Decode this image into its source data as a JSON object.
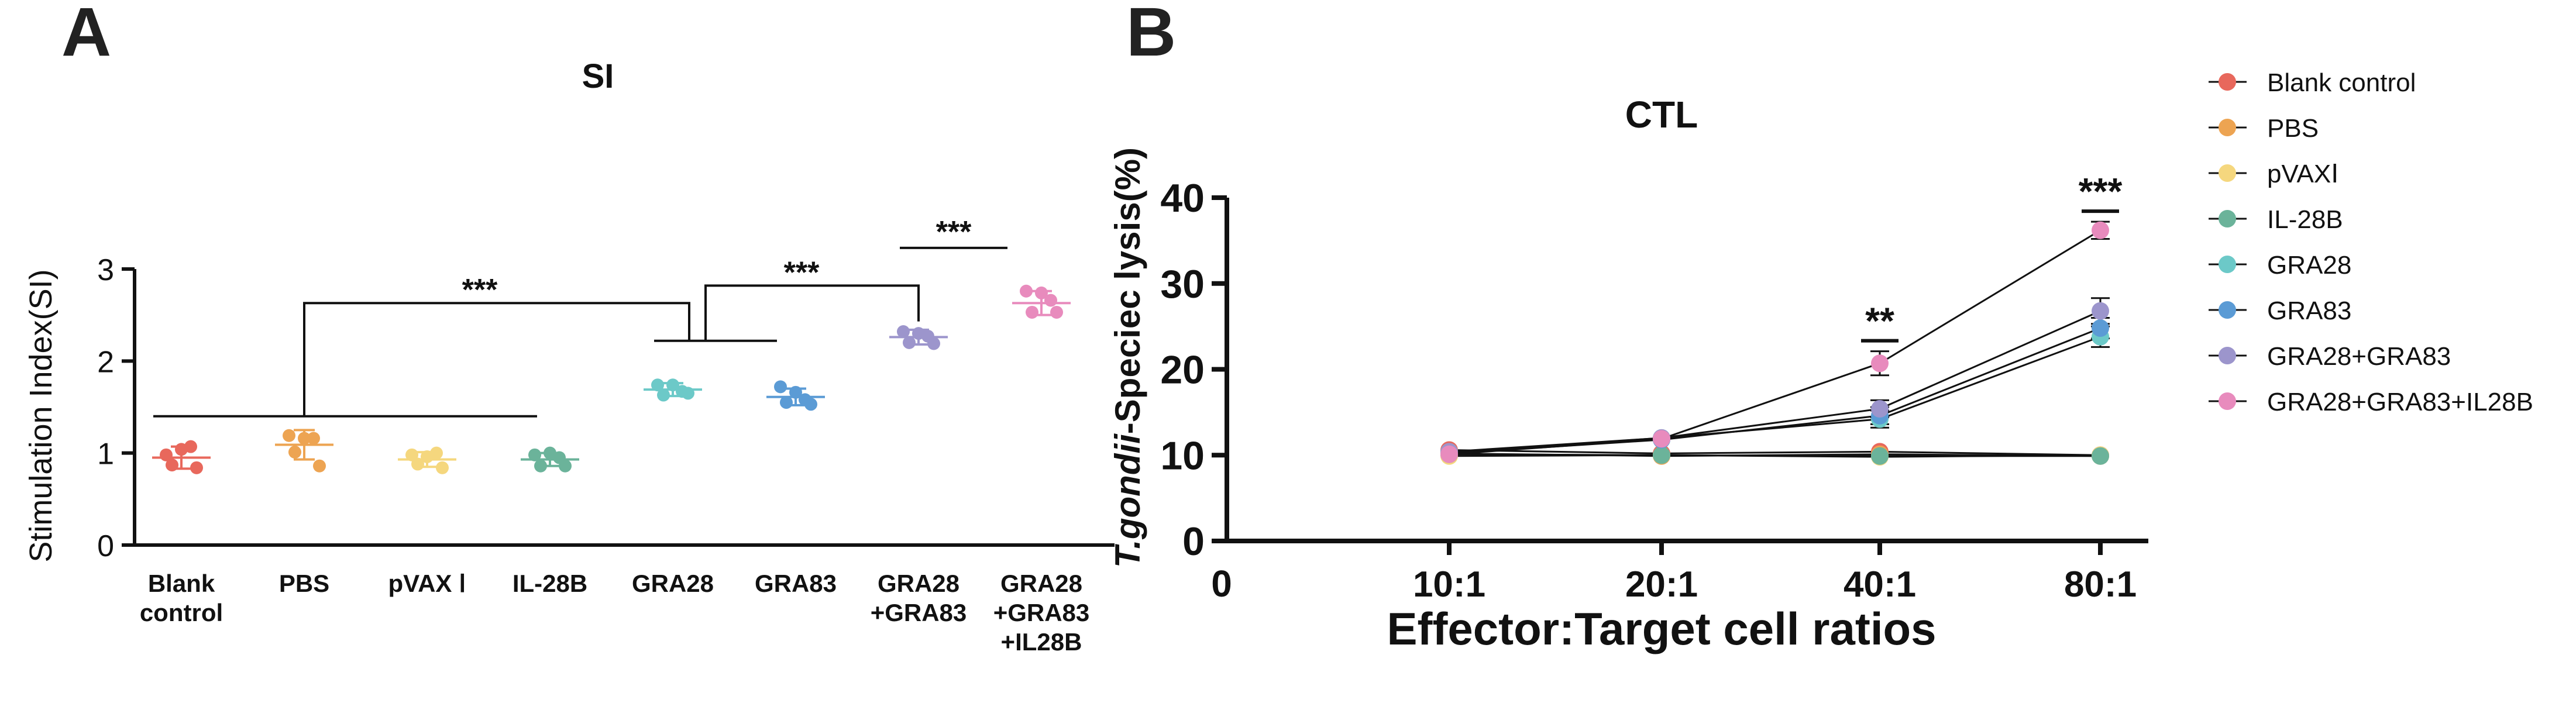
{
  "panel_labels": [
    "A",
    "B"
  ],
  "chart_data": [
    {
      "type": "scatter",
      "title": "SI",
      "xlabel": "",
      "ylabel": "Stimulation Index(SI)",
      "ylim": [
        0,
        3
      ],
      "yticks": [
        0,
        1,
        2,
        3
      ],
      "categories": [
        [
          "Blank",
          "control"
        ],
        [
          "PBS"
        ],
        [
          "pVAX Ⅰ"
        ],
        [
          "IL-28B"
        ],
        [
          "GRA28"
        ],
        [
          "GRA83"
        ],
        [
          "GRA28",
          "+GRA83"
        ],
        [
          "GRA28",
          "+GRA83",
          "+IL28B"
        ]
      ],
      "series": [
        {
          "name": "Blank control",
          "color": "#e8685c",
          "mean": 0.95,
          "sd": 0.12,
          "values": [
            0.98,
            1.07,
            0.87,
            0.84,
            1.04
          ]
        },
        {
          "name": "PBS",
          "color": "#eda452",
          "mean": 1.09,
          "sd": 0.16,
          "values": [
            1.19,
            1.16,
            1.01,
            0.86,
            1.16
          ]
        },
        {
          "name": "pVAX Ⅰ",
          "color": "#f5d77e",
          "mean": 0.93,
          "sd": 0.08,
          "values": [
            0.98,
            1.0,
            0.88,
            0.84,
            0.96
          ]
        },
        {
          "name": "IL-28B",
          "color": "#6bb39a",
          "mean": 0.93,
          "sd": 0.07,
          "values": [
            0.98,
            0.95,
            0.86,
            0.86,
            1.0
          ]
        },
        {
          "name": "GRA28",
          "color": "#6cc9c8",
          "mean": 1.69,
          "sd": 0.07,
          "values": [
            1.74,
            1.67,
            1.63,
            1.65,
            1.74
          ]
        },
        {
          "name": "GRA83",
          "color": "#5b9bd5",
          "mean": 1.61,
          "sd": 0.09,
          "values": [
            1.72,
            1.58,
            1.55,
            1.53,
            1.66
          ]
        },
        {
          "name": "GRA28+GRA83",
          "color": "#9c95cc",
          "mean": 2.26,
          "sd": 0.08,
          "values": [
            2.32,
            2.27,
            2.2,
            2.19,
            2.3
          ]
        },
        {
          "name": "GRA28+GRA83+IL28B",
          "color": "#e88bbd",
          "mean": 2.63,
          "sd": 0.13,
          "values": [
            2.76,
            2.66,
            2.53,
            2.53,
            2.74
          ]
        }
      ],
      "annotations": [
        {
          "text": "***",
          "comparison": "Blank control–IL-28B vs GRA28–GRA83"
        },
        {
          "text": "***",
          "comparison": "GRA28–GRA83 vs GRA28+GRA83"
        },
        {
          "text": "***",
          "comparison": "GRA28+GRA83 vs GRA28+GRA83+IL28B"
        }
      ]
    },
    {
      "type": "line",
      "title": "CTL",
      "xlabel": "Effector:Target cell ratios",
      "ylabel_italic": "T.gondii",
      "ylabel_rest": "-Speciec lysis(%)",
      "origin_label": "0",
      "ylim": [
        0,
        40
      ],
      "yticks": [
        0,
        10,
        20,
        30,
        40
      ],
      "x": [
        "10:1",
        "20:1",
        "40:1",
        "80:1"
      ],
      "series": [
        {
          "name": "Blank control",
          "color": "#e8685c",
          "values": [
            10.6,
            10.2,
            10.4,
            10.0
          ],
          "err": [
            0.3,
            0.3,
            0.4,
            0.3
          ]
        },
        {
          "name": "PBS",
          "color": "#eda452",
          "values": [
            10.2,
            9.9,
            10.1,
            9.9
          ],
          "err": [
            0.3,
            0.3,
            0.4,
            0.3
          ]
        },
        {
          "name": "pVAX Ⅰ",
          "color": "#f5d77e",
          "values": [
            9.9,
            10.0,
            9.8,
            10.0
          ],
          "err": [
            0.3,
            0.3,
            0.3,
            0.3
          ]
        },
        {
          "name": "IL-28B",
          "color": "#6bb39a",
          "values": [
            10.1,
            10.0,
            9.9,
            9.9
          ],
          "err": [
            0.3,
            0.3,
            0.3,
            0.3
          ]
        },
        {
          "name": "GRA28",
          "color": "#6cc9c8",
          "values": [
            10.3,
            12.0,
            14.2,
            23.8
          ],
          "err": [
            0.4,
            0.5,
            1.0,
            1.2
          ]
        },
        {
          "name": "GRA83",
          "color": "#5b9bd5",
          "values": [
            10.2,
            11.8,
            14.6,
            24.8
          ],
          "err": [
            0.4,
            0.5,
            1.0,
            1.2
          ]
        },
        {
          "name": "GRA28+GRA83",
          "color": "#9c95cc",
          "values": [
            10.4,
            12.0,
            15.4,
            26.8
          ],
          "err": [
            0.4,
            0.5,
            1.0,
            1.5
          ]
        },
        {
          "name": "GRA28+GRA83+IL28B",
          "color": "#e88bbd",
          "values": [
            10.1,
            11.9,
            20.7,
            36.2
          ],
          "err": [
            0.4,
            0.5,
            1.4,
            1.0
          ]
        }
      ],
      "annotations": [
        {
          "x": "40:1",
          "text": "**"
        },
        {
          "x": "80:1",
          "text": "***"
        }
      ],
      "legend": {
        "placement": "right",
        "entries": [
          "Blank control",
          "PBS",
          "pVAXⅠ",
          "IL-28B",
          "GRA28",
          "GRA83",
          "GRA28+GRA83",
          "GRA28+GRA83+IL28B"
        ]
      }
    }
  ]
}
